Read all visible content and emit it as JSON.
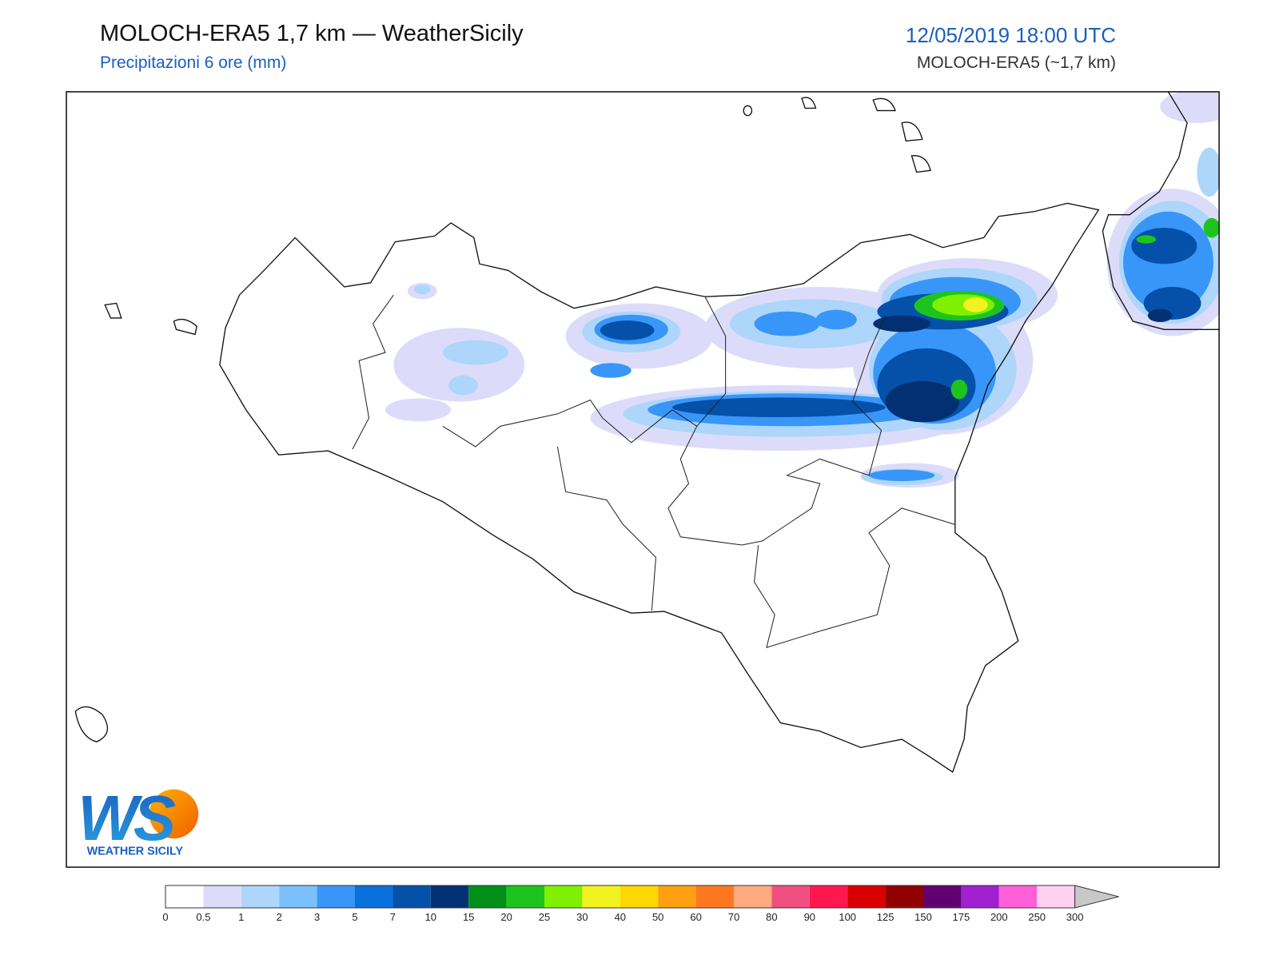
{
  "header": {
    "title": "MOLOCH-ERA5 1,7 km — WeatherSicily",
    "subtitle": "Precipitazioni 6 ore (mm)",
    "datetime": "12/05/2019 18:00 UTC",
    "model": "MOLOCH-ERA5 (~1,7 km)"
  },
  "logo": {
    "mark": "WS",
    "name": "WEATHER SICILY"
  },
  "colorbar": {
    "bounds": [
      0,
      0.5,
      1,
      2,
      3,
      5,
      7,
      10,
      15,
      20,
      25,
      30,
      40,
      50,
      60,
      70,
      80,
      90,
      100,
      125,
      150,
      175,
      200,
      250,
      300
    ],
    "colors": [
      "#ffffff",
      "#dcdcfa",
      "#aed6fb",
      "#7cc0fb",
      "#3896f8",
      "#0a70dc",
      "#0550a8",
      "#033072",
      "#00901a",
      "#1ec41e",
      "#7ef000",
      "#f2f220",
      "#ffd800",
      "#ffa010",
      "#ff7820",
      "#ffaa80",
      "#f05080",
      "#ff1850",
      "#d80000",
      "#900000",
      "#600070",
      "#a020d0",
      "#ff60d8",
      "#ffd0f0"
    ]
  }
}
